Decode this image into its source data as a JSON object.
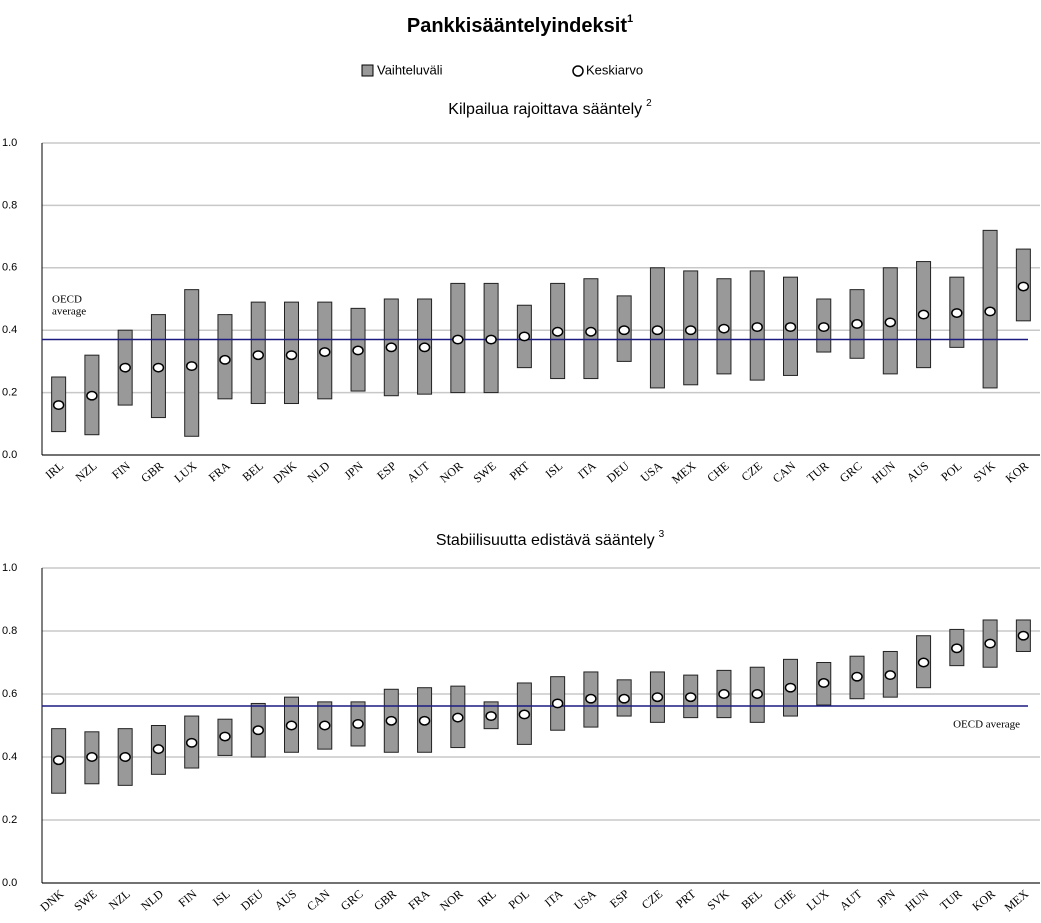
{
  "title": "Pankkisääntelyindeksit",
  "title_note": "1",
  "chart_data": [
    {
      "type": "range",
      "title": "Kilpailua rajoittava sääntely",
      "title_note": "2",
      "categories": [
        "IRL",
        "NZL",
        "FIN",
        "GBR",
        "LUX",
        "FRA",
        "BEL",
        "DNK",
        "NLD",
        "JPN",
        "ESP",
        "AUT",
        "NOR",
        "SWE",
        "PRT",
        "ISL",
        "ITA",
        "DEU",
        "USA",
        "MEX",
        "CHE",
        "CZE",
        "CAN",
        "TUR",
        "GRC",
        "HUN",
        "AUS",
        "POL",
        "SVK",
        "KOR"
      ],
      "series": [
        {
          "name": "Vaihteluväli",
          "color": "#999999",
          "low": [
            0.075,
            0.065,
            0.16,
            0.12,
            0.06,
            0.18,
            0.165,
            0.165,
            0.18,
            0.205,
            0.19,
            0.195,
            0.2,
            0.2,
            0.28,
            0.245,
            0.245,
            0.3,
            0.215,
            0.225,
            0.26,
            0.24,
            0.255,
            0.33,
            0.31,
            0.26,
            0.28,
            0.345,
            0.215,
            0.43
          ],
          "high": [
            0.25,
            0.32,
            0.4,
            0.45,
            0.53,
            0.45,
            0.49,
            0.49,
            0.49,
            0.47,
            0.5,
            0.5,
            0.55,
            0.55,
            0.48,
            0.55,
            0.565,
            0.51,
            0.6,
            0.59,
            0.565,
            0.59,
            0.57,
            0.5,
            0.53,
            0.6,
            0.62,
            0.57,
            0.72,
            0.66
          ]
        },
        {
          "name": "Keskiarvo",
          "color": "#ffffff",
          "values": [
            0.16,
            0.19,
            0.28,
            0.28,
            0.285,
            0.305,
            0.32,
            0.32,
            0.33,
            0.335,
            0.345,
            0.345,
            0.37,
            0.37,
            0.38,
            0.395,
            0.395,
            0.4,
            0.4,
            0.4,
            0.405,
            0.41,
            0.41,
            0.41,
            0.42,
            0.425,
            0.45,
            0.455,
            0.46,
            0.54
          ]
        }
      ],
      "reference": {
        "label": "OECD average",
        "value": 0.37,
        "color": "#1a1a80"
      },
      "ylim": [
        0,
        1
      ],
      "yticks": [
        {
          "value": 0,
          "label": "0.0"
        },
        0.2,
        0.4,
        0.6,
        0.8,
        {
          "value": 1,
          "label": "1.0"
        }
      ],
      "grid": true
    },
    {
      "type": "range",
      "title": "Stabiilisuutta edistävä sääntely",
      "title_note": "3",
      "categories": [
        "DNK",
        "SWE",
        "NZL",
        "NLD",
        "FIN",
        "ISL",
        "DEU",
        "AUS",
        "CAN",
        "GRC",
        "GBR",
        "FRA",
        "NOR",
        "IRL",
        "POL",
        "ITA",
        "USA",
        "ESP",
        "CZE",
        "PRT",
        "SVK",
        "BEL",
        "CHE",
        "LUX",
        "AUT",
        "JPN",
        "HUN",
        "TUR",
        "KOR",
        "MEX"
      ],
      "series": [
        {
          "color": "#999999",
          "low": [
            0.285,
            0.315,
            0.31,
            0.345,
            0.365,
            0.405,
            0.4,
            0.415,
            0.425,
            0.435,
            0.415,
            0.415,
            0.43,
            0.49,
            0.44,
            0.485,
            0.495,
            0.53,
            0.51,
            0.525,
            0.525,
            0.51,
            0.53,
            0.565,
            0.585,
            0.59,
            0.62,
            0.69,
            0.685,
            0.735
          ],
          "high": [
            0.49,
            0.48,
            0.49,
            0.5,
            0.53,
            0.52,
            0.57,
            0.59,
            0.575,
            0.575,
            0.615,
            0.62,
            0.625,
            0.575,
            0.635,
            0.655,
            0.67,
            0.645,
            0.67,
            0.66,
            0.675,
            0.685,
            0.71,
            0.7,
            0.72,
            0.735,
            0.785,
            0.805,
            0.835,
            0.835
          ]
        },
        {
          "color": "#ffffff",
          "values": [
            0.39,
            0.4,
            0.4,
            0.425,
            0.445,
            0.465,
            0.485,
            0.5,
            0.5,
            0.505,
            0.515,
            0.515,
            0.525,
            0.53,
            0.535,
            0.57,
            0.585,
            0.585,
            0.59,
            0.59,
            0.6,
            0.6,
            0.62,
            0.635,
            0.655,
            0.66,
            0.7,
            0.745,
            0.76,
            0.785
          ]
        }
      ],
      "reference": {
        "label": "OECD average",
        "value": 0.562,
        "color": "#1a1a80"
      },
      "ylim": [
        0,
        1
      ],
      "yticks": [
        {
          "value": 0,
          "label": "0.0"
        },
        0.2,
        0.4,
        0.6,
        0.8,
        {
          "value": 1,
          "label": "1.0"
        }
      ],
      "grid": true
    }
  ]
}
